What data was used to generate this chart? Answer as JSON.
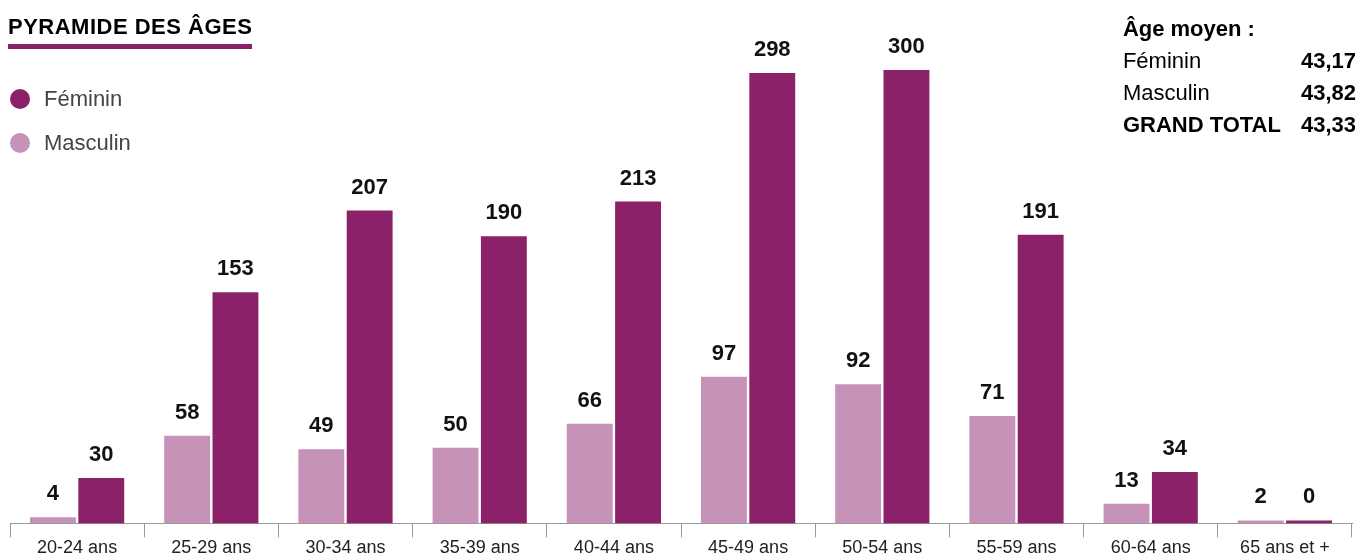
{
  "chart_data": {
    "type": "bar",
    "title": "PYRAMIDE DES ÂGES",
    "categories": [
      "20-24 ans",
      "25-29 ans",
      "30-34 ans",
      "35-39 ans",
      "40-44 ans",
      "45-49 ans",
      "50-54 ans",
      "55-59 ans",
      "60-64 ans",
      "65 ans et +"
    ],
    "series": [
      {
        "name": "Masculin",
        "color": "#c792b8",
        "values": [
          4,
          58,
          49,
          50,
          66,
          97,
          92,
          71,
          13,
          2
        ]
      },
      {
        "name": "Féminin",
        "color": "#8b2169",
        "values": [
          30,
          153,
          207,
          190,
          213,
          298,
          300,
          191,
          34,
          0
        ]
      }
    ],
    "data_labels": true,
    "grid": false,
    "legend": "top left",
    "tick_labels": "x",
    "annotations": [
      "Âge moyen :",
      "Féminin",
      "43,17",
      "Masculin",
      "43,82",
      "GRAND TOTAL",
      "43,33"
    ]
  }
}
